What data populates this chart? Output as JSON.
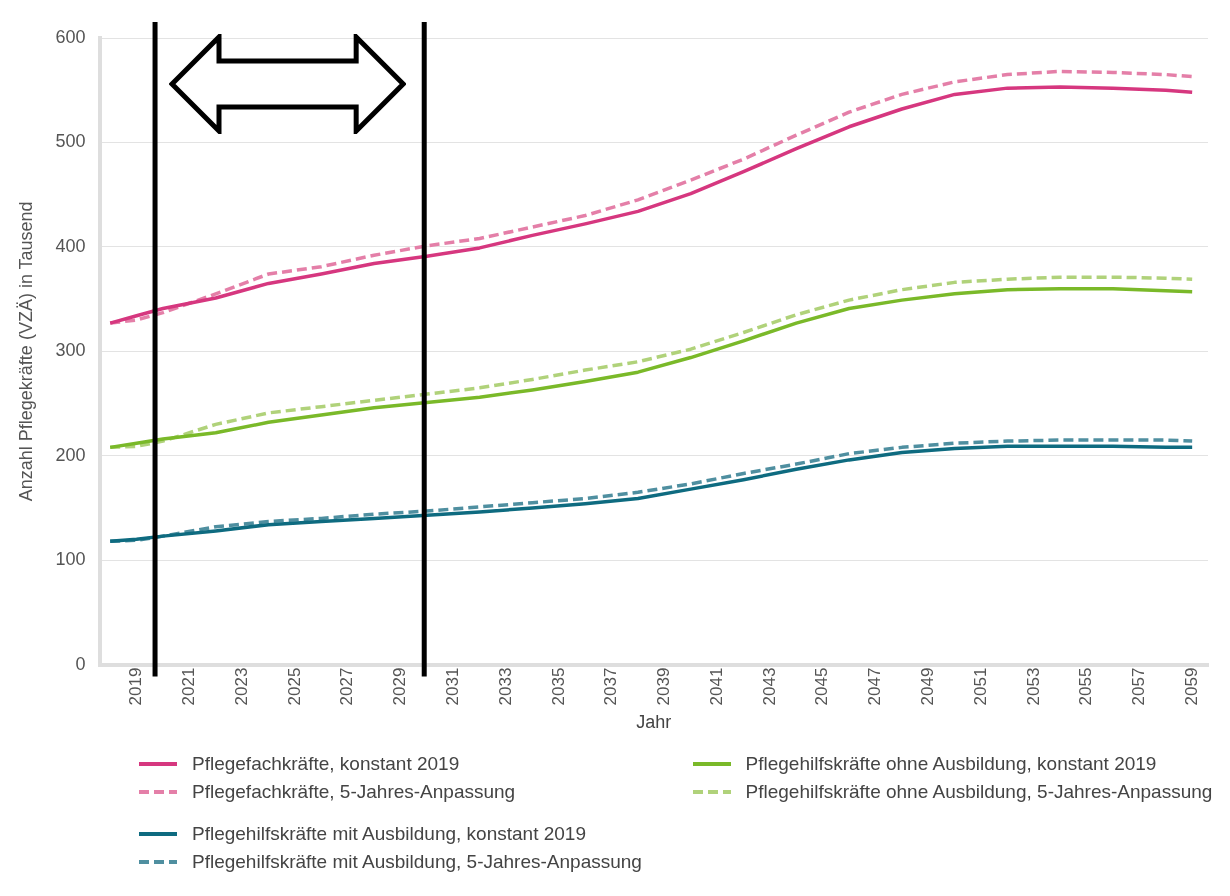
{
  "chart_data": {
    "type": "line",
    "xlabel": "Jahr",
    "ylabel": "Anzahl Pflegekräfte (VZÄ) in Tausend",
    "x": [
      2018,
      2019,
      2020,
      2022,
      2024,
      2026,
      2028,
      2030,
      2032,
      2034,
      2036,
      2038,
      2040,
      2042,
      2044,
      2046,
      2048,
      2050,
      2052,
      2054,
      2056,
      2058,
      2059
    ],
    "xlim": [
      2017.6,
      2059.6
    ],
    "xticks": [
      2019,
      2021,
      2023,
      2025,
      2027,
      2029,
      2031,
      2033,
      2035,
      2037,
      2039,
      2041,
      2043,
      2045,
      2047,
      2049,
      2051,
      2053,
      2055,
      2057,
      2059
    ],
    "ylim": [
      0,
      600
    ],
    "yticks": [
      0,
      100,
      200,
      300,
      400,
      500,
      600
    ],
    "grid": "y",
    "legend": "bottom",
    "ref_lines": [
      {
        "axis": "x",
        "value": 2019.7,
        "color": "#000000"
      },
      {
        "axis": "x",
        "value": 2029.9,
        "color": "#000000"
      }
    ],
    "series": [
      {
        "name": "Pflegefachkräfte, konstant 2019",
        "color": "#d6377f",
        "line_style": "solid",
        "values": [
          327,
          334,
          341,
          351,
          365,
          374,
          384,
          391,
          399,
          411,
          422,
          434,
          451,
          472,
          494,
          515,
          532,
          546,
          552,
          553,
          552,
          550,
          548
        ]
      },
      {
        "name": "Pflegefachkräfte, 5-Jahres-Anpassung",
        "color": "#e47fa8",
        "line_style": "dashed",
        "values": [
          327,
          330,
          337,
          355,
          374,
          381,
          392,
          401,
          408,
          419,
          430,
          445,
          464,
          484,
          507,
          529,
          546,
          558,
          565,
          568,
          567,
          565,
          563
        ]
      },
      {
        "name": "Pflegehilfskräfte ohne Ausbildung, konstant 2019",
        "color": "#7ab929",
        "line_style": "solid",
        "values": [
          208,
          212,
          216,
          222,
          232,
          239,
          246,
          251,
          256,
          263,
          271,
          280,
          294,
          310,
          327,
          341,
          349,
          355,
          359,
          360,
          360,
          358,
          357
        ]
      },
      {
        "name": "Pflegehilfskräfte ohne Ausbildung, 5-Jahres-Anpassung",
        "color": "#b0d27a",
        "line_style": "dashed",
        "values": [
          208,
          209,
          214,
          230,
          241,
          247,
          253,
          259,
          265,
          273,
          282,
          290,
          302,
          318,
          335,
          349,
          359,
          366,
          369,
          371,
          371,
          370,
          369
        ]
      },
      {
        "name": "Pflegehilfskräfte mit Ausbildung, konstant 2019",
        "color": "#0e6b80",
        "line_style": "solid",
        "values": [
          118,
          120,
          123,
          128,
          134,
          137,
          140,
          143,
          146,
          150,
          154,
          159,
          168,
          177,
          187,
          196,
          203,
          207,
          209,
          209,
          209,
          208,
          208
        ]
      },
      {
        "name": "Pflegehilfskräfte mit Ausbildung, 5-Jahres-Anpassung",
        "color": "#4f8fa0",
        "line_style": "dashed",
        "values": [
          118,
          119,
          123,
          132,
          137,
          140,
          144,
          147,
          151,
          155,
          159,
          165,
          173,
          183,
          192,
          202,
          208,
          212,
          214,
          215,
          215,
          215,
          214
        ]
      }
    ]
  }
}
